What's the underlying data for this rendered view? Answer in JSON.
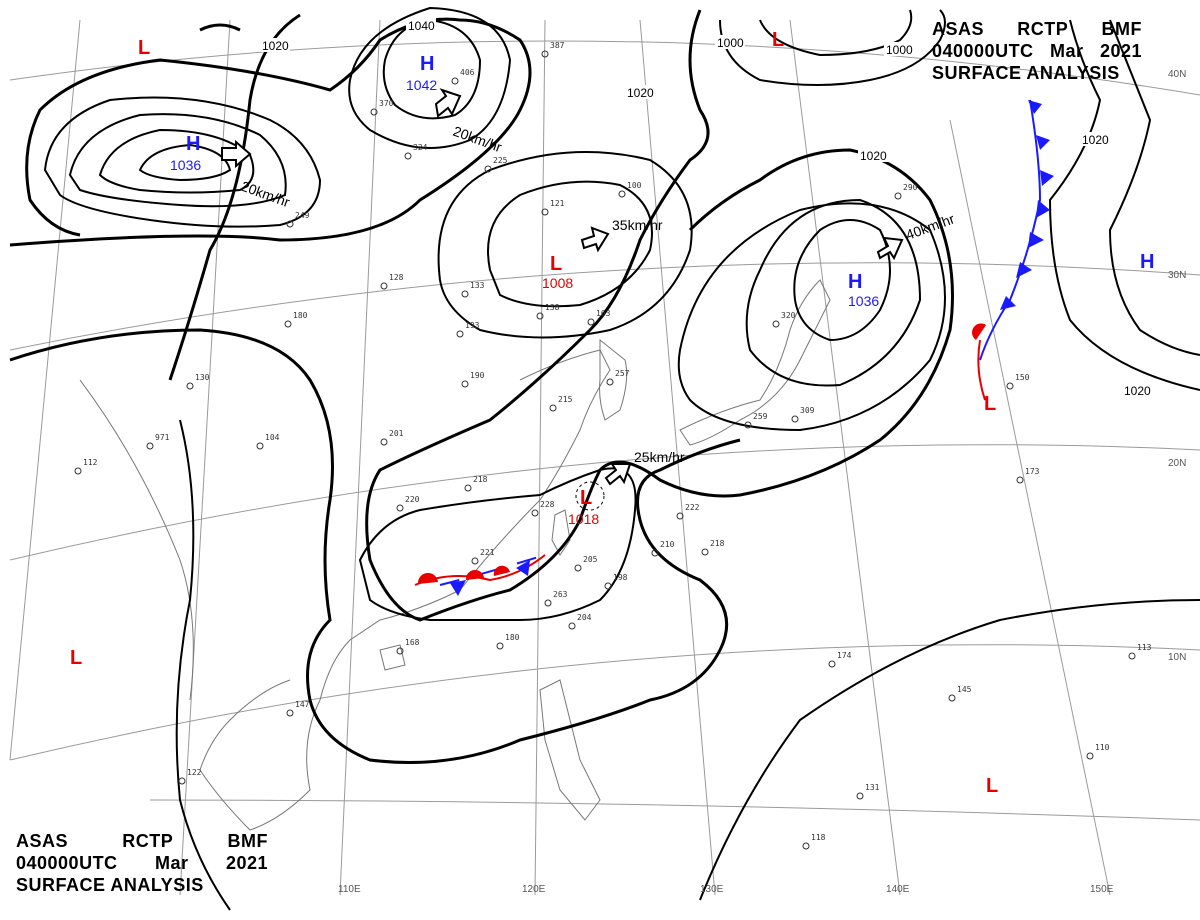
{
  "header": {
    "line1": [
      "ASAS",
      "RCTP",
      "BMF"
    ],
    "line2": [
      "040000UTC",
      "Mar",
      "2021"
    ],
    "line3": "SURFACE ANALYSIS"
  },
  "footer": {
    "line1": [
      "ASAS",
      "RCTP",
      "BMF"
    ],
    "line2": [
      "040000UTC",
      "Mar",
      "2021"
    ],
    "line3": "SURFACE ANALYSIS"
  },
  "pressure_systems": [
    {
      "id": "h-west",
      "type": "H",
      "value": "1036"
    },
    {
      "id": "h-north",
      "type": "H",
      "value": "1042"
    },
    {
      "id": "h-japan",
      "type": "H",
      "value": "1036"
    },
    {
      "id": "h-east",
      "type": "H",
      "value": ""
    },
    {
      "id": "l-nw",
      "type": "L",
      "value": ""
    },
    {
      "id": "l-north",
      "type": "L",
      "value": ""
    },
    {
      "id": "l-mongolia",
      "type": "L",
      "value": "1008"
    },
    {
      "id": "l-taiwan",
      "type": "L",
      "value": "1018"
    },
    {
      "id": "l-pacific-ne",
      "type": "L",
      "value": ""
    },
    {
      "id": "l-sw",
      "type": "L",
      "value": ""
    },
    {
      "id": "l-pacific-se",
      "type": "L",
      "value": ""
    }
  ],
  "isobar_labels": [
    "1020",
    "1040",
    "1020",
    "1000",
    "1000",
    "1020",
    "1020",
    "1020"
  ],
  "motion_vectors": [
    "20km/hr",
    "20km/hr",
    "35km/hr",
    "40km/hr",
    "25km/hr"
  ],
  "graticule": {
    "lat": [
      "40N",
      "30N",
      "20N",
      "10N"
    ],
    "lon": [
      "110E",
      "120E",
      "130E",
      "140E",
      "150E"
    ]
  },
  "colors": {
    "high": "#1a1aff",
    "low": "#e60000",
    "isobar": "#000000",
    "cold_front": "#1a1aff",
    "warm_front": "#e60000",
    "coastline": "#777777",
    "graticule": "#9a9a9a"
  },
  "station_samples": [
    "387",
    "406",
    "370",
    "324",
    "225",
    "249",
    "121",
    "100",
    "128",
    "133",
    "193",
    "180",
    "190",
    "130",
    "104",
    "112",
    "201",
    "218",
    "220",
    "228",
    "221",
    "205",
    "263",
    "204",
    "198",
    "210",
    "218",
    "222",
    "180",
    "168",
    "147",
    "122",
    "290",
    "320",
    "309",
    "259",
    "150",
    "173",
    "174",
    "145",
    "113",
    "110",
    "131",
    "118",
    "257",
    "215",
    "163",
    "138",
    "971"
  ]
}
